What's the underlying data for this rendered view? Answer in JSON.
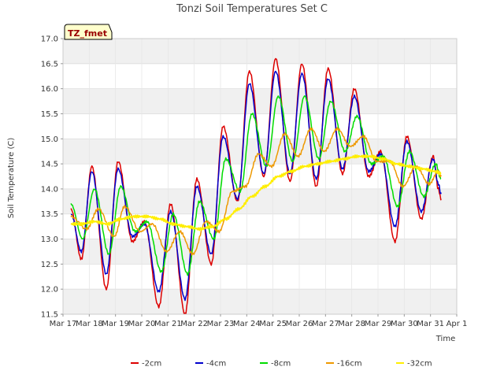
{
  "chart_data": {
    "type": "line",
    "title": "Tonzi Soil Temperatures Set C",
    "xlabel": "Time",
    "ylabel": "Soil Temperature (C)",
    "annotation": "TZ_fmet",
    "xlim": [
      17,
      32
    ],
    "ylim": [
      11.5,
      17.0
    ],
    "x_ticks": [
      17,
      18,
      19,
      20,
      21,
      22,
      23,
      24,
      25,
      26,
      27,
      28,
      29,
      30,
      31,
      32
    ],
    "x_tick_labels": [
      "Mar 17",
      "Mar 18",
      "Mar 19",
      "Mar 20",
      "Mar 21",
      "Mar 22",
      "Mar 23",
      "Mar 24",
      "Mar 25",
      "Mar 26",
      "Mar 27",
      "Mar 28",
      "Mar 29",
      "Mar 30",
      "Mar 31",
      "Apr 1"
    ],
    "y_ticks": [
      11.5,
      12.0,
      12.5,
      13.0,
      13.5,
      14.0,
      14.5,
      15.0,
      15.5,
      16.0,
      16.5,
      17.0
    ],
    "y_tick_labels": [
      "11.5",
      "12.0",
      "12.5",
      "13.0",
      "13.5",
      "14.0",
      "14.5",
      "15.0",
      "15.5",
      "16.0",
      "16.5",
      "17.0"
    ],
    "legend_position": "bottom",
    "series": [
      {
        "name": "-2cm",
        "color": "#dd0000",
        "width": 1.5,
        "x": [
          17.3,
          17.7,
          18.1,
          18.65,
          19.1,
          19.65,
          20.1,
          20.65,
          21.1,
          21.65,
          22.1,
          22.65,
          23.1,
          23.65,
          24.1,
          24.65,
          25.1,
          25.65,
          26.1,
          26.65,
          27.1,
          27.65,
          28.1,
          28.65,
          29.1,
          29.65,
          30.1,
          30.65,
          31.1,
          31.3,
          31.4
        ],
        "y": [
          13.6,
          12.6,
          14.45,
          12.0,
          14.55,
          12.95,
          13.35,
          11.65,
          13.7,
          11.5,
          14.2,
          12.5,
          15.25,
          13.75,
          16.35,
          14.25,
          16.6,
          14.15,
          16.5,
          14.05,
          16.4,
          14.3,
          16.0,
          14.25,
          14.75,
          12.95,
          15.05,
          13.4,
          14.65,
          14.0,
          13.8
        ]
      },
      {
        "name": "-4cm",
        "color": "#0000cc",
        "width": 1.5,
        "x": [
          17.3,
          17.7,
          18.1,
          18.65,
          19.1,
          19.65,
          20.1,
          20.65,
          21.1,
          21.65,
          22.1,
          22.65,
          23.1,
          23.65,
          24.1,
          24.65,
          25.1,
          25.65,
          26.1,
          26.65,
          27.1,
          27.65,
          28.1,
          28.65,
          29.1,
          29.65,
          30.1,
          30.65,
          31.1,
          31.3,
          31.4
        ],
        "y": [
          13.5,
          12.75,
          14.35,
          12.3,
          14.4,
          13.05,
          13.3,
          11.95,
          13.55,
          11.8,
          14.05,
          12.7,
          15.05,
          13.8,
          16.1,
          14.3,
          16.35,
          14.3,
          16.3,
          14.2,
          16.2,
          14.4,
          15.85,
          14.35,
          14.7,
          13.25,
          14.95,
          13.55,
          14.6,
          14.1,
          13.9
        ]
      },
      {
        "name": "-8cm",
        "color": "#00dd00",
        "width": 1.5,
        "x": [
          17.3,
          17.75,
          18.2,
          18.75,
          19.2,
          19.75,
          20.2,
          20.75,
          21.2,
          21.75,
          22.2,
          22.75,
          23.2,
          23.75,
          24.2,
          24.75,
          25.2,
          25.75,
          26.2,
          26.75,
          27.2,
          27.75,
          28.2,
          28.75,
          29.2,
          29.75,
          30.2,
          30.75,
          31.2,
          31.4
        ],
        "y": [
          13.7,
          13.0,
          14.0,
          12.7,
          14.05,
          13.15,
          13.35,
          12.35,
          13.5,
          12.3,
          13.75,
          13.0,
          14.6,
          13.95,
          15.5,
          14.45,
          15.85,
          14.55,
          15.85,
          14.6,
          15.75,
          14.75,
          15.45,
          14.5,
          14.65,
          13.65,
          14.75,
          13.85,
          14.5,
          14.2
        ]
      },
      {
        "name": "-16cm",
        "color": "#ee9900",
        "width": 1.5,
        "x": [
          17.3,
          17.9,
          18.35,
          18.95,
          19.35,
          19.95,
          20.4,
          20.95,
          21.45,
          21.95,
          22.45,
          22.95,
          23.45,
          23.95,
          24.45,
          24.95,
          25.45,
          25.95,
          26.45,
          26.95,
          27.45,
          27.95,
          28.45,
          28.95,
          29.45,
          29.95,
          30.45,
          30.95,
          31.3,
          31.4
        ],
        "y": [
          13.45,
          13.2,
          13.6,
          13.05,
          13.65,
          13.15,
          13.3,
          12.75,
          13.15,
          12.7,
          13.35,
          13.15,
          13.95,
          14.05,
          14.7,
          14.45,
          15.1,
          14.65,
          15.2,
          14.75,
          15.2,
          14.85,
          15.05,
          14.55,
          14.55,
          14.05,
          14.45,
          14.1,
          14.35,
          14.25
        ]
      },
      {
        "name": "-32cm",
        "color": "#ffee00",
        "width": 2,
        "x": [
          17.3,
          17.7,
          18.2,
          18.7,
          19.2,
          19.7,
          20.2,
          20.7,
          21.2,
          21.7,
          22.2,
          22.7,
          23.2,
          23.7,
          24.2,
          24.7,
          25.2,
          25.7,
          26.2,
          26.7,
          27.2,
          27.7,
          28.2,
          28.7,
          29.2,
          29.7,
          30.2,
          30.7,
          31.2,
          31.4
        ],
        "y": [
          13.3,
          13.3,
          13.35,
          13.3,
          13.4,
          13.45,
          13.45,
          13.4,
          13.3,
          13.25,
          13.2,
          13.25,
          13.4,
          13.6,
          13.85,
          14.05,
          14.25,
          14.35,
          14.45,
          14.5,
          14.55,
          14.6,
          14.65,
          14.65,
          14.6,
          14.5,
          14.45,
          14.4,
          14.35,
          14.3
        ]
      }
    ]
  }
}
